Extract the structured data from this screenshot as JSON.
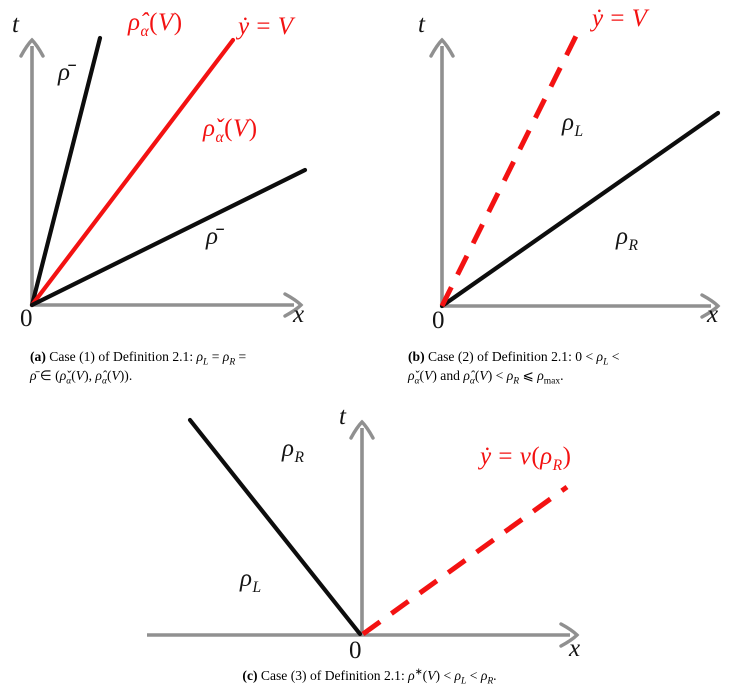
{
  "colors": {
    "red": "#f31212",
    "axis_gray": "#909090",
    "line_black": "#0d0d0d"
  },
  "fig_a": {
    "labels": {
      "t": [
        {
          "t": "t",
          "i": true
        }
      ],
      "rho_bar_left": [
        {
          "t": "ρ̄",
          "i": true
        }
      ],
      "rho_hat": [
        {
          "t": "ρ̂",
          "i": true
        },
        {
          "t": "α",
          "i": true,
          "sub": true
        },
        {
          "t": "("
        },
        {
          "t": "V",
          "i": true
        },
        {
          "t": ")"
        }
      ],
      "y_dot": [
        {
          "t": "ẏ",
          "i": true
        },
        {
          "t": " = "
        },
        {
          "t": "V",
          "i": true
        }
      ],
      "rho_check": [
        {
          "t": "ρ̌",
          "i": true
        },
        {
          "t": "α",
          "i": true,
          "sub": true
        },
        {
          "t": "("
        },
        {
          "t": "V",
          "i": true
        },
        {
          "t": ")"
        }
      ],
      "rho_bar_right": [
        {
          "t": "ρ̄",
          "i": true
        }
      ],
      "origin": [
        {
          "t": "0"
        }
      ],
      "x": [
        {
          "t": "x",
          "i": true
        }
      ]
    }
  },
  "fig_b": {
    "labels": {
      "t": [
        {
          "t": "t",
          "i": true
        }
      ],
      "y_dot": [
        {
          "t": "ẏ",
          "i": true
        },
        {
          "t": " = "
        },
        {
          "t": "V",
          "i": true
        }
      ],
      "rho_L": [
        {
          "t": "ρ",
          "i": true
        },
        {
          "t": "L",
          "i": true,
          "sub": true
        }
      ],
      "rho_R": [
        {
          "t": "ρ",
          "i": true
        },
        {
          "t": "R",
          "i": true,
          "sub": true
        }
      ],
      "origin": [
        {
          "t": "0"
        }
      ],
      "x": [
        {
          "t": "x",
          "i": true
        }
      ]
    }
  },
  "fig_c": {
    "labels": {
      "t": [
        {
          "t": "t",
          "i": true
        }
      ],
      "rho_R": [
        {
          "t": "ρ",
          "i": true
        },
        {
          "t": "R",
          "i": true,
          "sub": true
        }
      ],
      "y_dot_v": [
        {
          "t": "ẏ",
          "i": true
        },
        {
          "t": " = "
        },
        {
          "t": "v",
          "i": true
        },
        {
          "t": "("
        },
        {
          "t": "ρ",
          "i": true
        },
        {
          "t": "R",
          "i": true,
          "sub": true
        },
        {
          "t": ")"
        }
      ],
      "rho_L": [
        {
          "t": "ρ",
          "i": true
        },
        {
          "t": "L",
          "i": true,
          "sub": true
        }
      ],
      "origin": [
        {
          "t": "0"
        }
      ],
      "x": [
        {
          "t": "x",
          "i": true
        }
      ]
    }
  },
  "captions": {
    "a": {
      "line1": [
        {
          "t": "(a)",
          "b": true
        },
        {
          "t": " Case (1) of Definition 2.1: "
        },
        {
          "t": "ρ",
          "i": true
        },
        {
          "t": "L",
          "i": true,
          "sub": true
        },
        {
          "t": " = "
        },
        {
          "t": "ρ",
          "i": true
        },
        {
          "t": "R",
          "i": true,
          "sub": true
        },
        {
          "t": " ="
        }
      ],
      "line2": [
        {
          "t": "ρ̄",
          "i": true
        },
        {
          "t": " ∈ ("
        },
        {
          "t": "ρ̌",
          "i": true
        },
        {
          "t": "α",
          "i": true,
          "sub": true
        },
        {
          "t": "("
        },
        {
          "t": "V",
          "i": true
        },
        {
          "t": "), "
        },
        {
          "t": "ρ̂",
          "i": true
        },
        {
          "t": "α",
          "i": true,
          "sub": true
        },
        {
          "t": "("
        },
        {
          "t": "V",
          "i": true
        },
        {
          "t": "))."
        }
      ]
    },
    "b": {
      "line1": [
        {
          "t": "(b)",
          "b": true
        },
        {
          "t": " Case (2) of Definition 2.1: 0 < "
        },
        {
          "t": "ρ",
          "i": true
        },
        {
          "t": "L",
          "i": true,
          "sub": true
        },
        {
          "t": " <"
        }
      ],
      "line2": [
        {
          "t": "ρ̌",
          "i": true
        },
        {
          "t": "α",
          "i": true,
          "sub": true
        },
        {
          "t": "("
        },
        {
          "t": "V",
          "i": true
        },
        {
          "t": ") and "
        },
        {
          "t": "ρ̂",
          "i": true
        },
        {
          "t": "α",
          "i": true,
          "sub": true
        },
        {
          "t": "("
        },
        {
          "t": "V",
          "i": true
        },
        {
          "t": ") < "
        },
        {
          "t": "ρ",
          "i": true
        },
        {
          "t": "R",
          "i": true,
          "sub": true
        },
        {
          "t": " ⩽ "
        },
        {
          "t": "ρ",
          "i": true
        },
        {
          "t": "max",
          "sub": true
        },
        {
          "t": "."
        }
      ]
    },
    "c": {
      "line1": [
        {
          "t": "(c)",
          "b": true
        },
        {
          "t": " Case (3) of Definition 2.1: "
        },
        {
          "t": "ρ",
          "i": true
        },
        {
          "t": "∗",
          "sup": true
        },
        {
          "t": "("
        },
        {
          "t": "V",
          "i": true
        },
        {
          "t": ") < "
        },
        {
          "t": "ρ",
          "i": true
        },
        {
          "t": "L",
          "i": true,
          "sub": true
        },
        {
          "t": " < "
        },
        {
          "t": "ρ",
          "i": true
        },
        {
          "t": "R",
          "i": true,
          "sub": true
        },
        {
          "t": "."
        }
      ]
    }
  }
}
